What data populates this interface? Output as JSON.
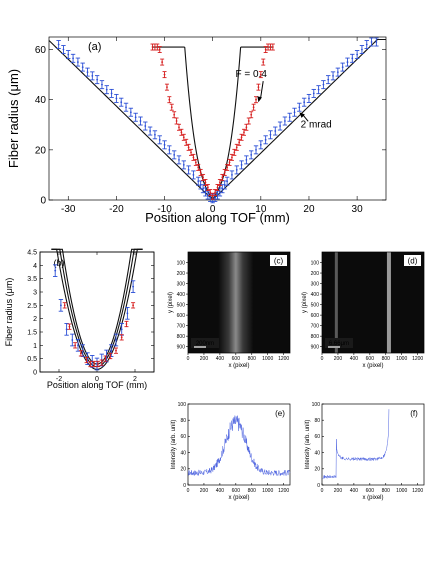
{
  "chart_data": [
    {
      "id": "a",
      "type": "scatter",
      "panel_label": "(a)",
      "xlabel": "Position along TOF (mm)",
      "ylabel": "Fiber radius (μm)",
      "xlim": [
        -34,
        36
      ],
      "ylim": [
        0,
        65
      ],
      "xticks": [
        -30,
        -20,
        -10,
        0,
        10,
        20,
        30
      ],
      "yticks": [
        0,
        20,
        40,
        60
      ],
      "annotations": [
        {
          "text": "F = 0.4",
          "anchor": [
            9.5,
            39
          ],
          "label_at": [
            8,
            49
          ]
        },
        {
          "text": "2 mrad",
          "anchor": [
            18,
            35
          ],
          "label_at": [
            21.5,
            29
          ]
        }
      ],
      "series": [
        {
          "color": "#2b4fd6",
          "err": 1.6,
          "x": [
            -32,
            -31,
            -30,
            -29,
            -28,
            -27,
            -26,
            -25,
            -24,
            -23,
            -22,
            -21,
            -20,
            -19,
            -18,
            -17,
            -16,
            -15,
            -14,
            -13,
            -12,
            -11,
            -10,
            -9,
            -8,
            -7,
            -6,
            -5,
            -4,
            -3,
            -2.5,
            -2,
            -1.5,
            -1,
            -0.5,
            0,
            0.5,
            1,
            1.5,
            2,
            2.5,
            3,
            4,
            5,
            6,
            7,
            8,
            9,
            10,
            11,
            12,
            13,
            14,
            15,
            16,
            17,
            18,
            19,
            20,
            21,
            22,
            23,
            24,
            25,
            26,
            27,
            28,
            29,
            30,
            31,
            32,
            33,
            34
          ],
          "y": [
            62,
            60,
            58,
            56.5,
            55,
            53,
            51,
            49.5,
            48,
            46,
            44,
            42.5,
            40.5,
            39,
            37,
            35,
            33,
            31.5,
            29.5,
            27.5,
            26,
            24,
            22,
            20,
            18,
            16,
            14,
            12,
            10,
            7.5,
            6,
            4.5,
            3.2,
            2,
            1,
            0.5,
            1,
            2,
            3.2,
            4.5,
            6,
            7.5,
            10,
            12,
            14,
            16,
            18,
            20,
            22,
            24,
            26,
            27.5,
            29.5,
            31.5,
            33,
            35,
            37,
            39,
            40.5,
            42.5,
            44,
            46,
            48,
            49.5,
            51,
            53,
            55,
            56.5,
            58,
            60,
            62,
            63,
            63
          ]
        },
        {
          "color": "#d61f1f",
          "err": 1.2,
          "x": [
            -12.5,
            -12,
            -11.5,
            -11,
            -10.5,
            -10,
            -9.5,
            -9,
            -8.5,
            -8,
            -7.5,
            -7,
            -6.5,
            -6,
            -5.5,
            -5,
            -4.5,
            -4,
            -3.5,
            -3,
            -2.5,
            -2,
            -1.5,
            -1,
            -0.5,
            0,
            0.5,
            1,
            1.5,
            2,
            2.5,
            3,
            3.5,
            4,
            4.5,
            5,
            5.5,
            6,
            6.5,
            7,
            7.5,
            8,
            8.5,
            9,
            9.5,
            10,
            10.5,
            11,
            11.5,
            12,
            12.5
          ],
          "y": [
            61,
            61,
            61,
            60,
            55,
            50,
            45,
            40,
            37,
            34,
            31.5,
            29,
            27,
            25,
            23,
            21,
            19,
            17,
            15,
            13,
            11,
            9,
            7,
            5,
            3,
            1.5,
            3,
            5,
            7,
            9,
            11,
            13,
            15,
            17,
            19,
            21,
            23,
            25,
            27,
            29,
            31.5,
            34,
            37,
            40,
            45,
            50,
            55,
            60,
            61,
            61,
            61
          ]
        }
      ]
    },
    {
      "id": "b",
      "type": "scatter",
      "panel_label": "(b)",
      "xlabel": "Position along TOF (mm)",
      "ylabel": "Fiber radius (μm)",
      "xlim": [
        -3,
        3
      ],
      "ylim": [
        0,
        4.5
      ],
      "xticks": [
        -2,
        0,
        2
      ],
      "yticks": [
        0,
        0.5,
        1,
        1.5,
        2,
        2.5,
        3,
        3.5,
        4,
        4.5
      ],
      "ytick_labels": [
        "0",
        "0.5",
        "1",
        "1.5",
        "2",
        "2.5",
        "3",
        "3.5",
        "4",
        "4.5"
      ],
      "series": [
        {
          "color": "#2b4fd6",
          "err": 0.22,
          "x": [
            -2.2,
            -1.9,
            -1.6,
            -1.3,
            -1.0,
            -0.75,
            -0.5,
            -0.25,
            0,
            0.25,
            0.5,
            0.75,
            1.0,
            1.3,
            1.6,
            1.9
          ],
          "y": [
            3.8,
            2.5,
            1.6,
            1.2,
            1.0,
            0.8,
            0.5,
            0.4,
            0.3,
            0.45,
            0.6,
            0.8,
            1.2,
            1.6,
            2.2,
            3.2
          ]
        },
        {
          "color": "#d61f1f",
          "err": 0.1,
          "x": [
            -1.7,
            -1.45,
            -1.15,
            -0.85,
            -0.55,
            -0.35,
            -0.15,
            0.05,
            0.25,
            0.45,
            0.7,
            1.0,
            1.3,
            1.55,
            1.9
          ],
          "y": [
            2.5,
            1.7,
            1.0,
            0.7,
            0.45,
            0.3,
            0.3,
            0.3,
            0.35,
            0.5,
            0.6,
            0.8,
            1.3,
            1.8,
            2.5
          ]
        }
      ]
    },
    {
      "id": "c",
      "type": "image",
      "panel_label": "(c)",
      "xlabel": "x (pixel)",
      "ylabel": "y (pixel)",
      "xticks": [
        0,
        200,
        400,
        600,
        800,
        1000,
        1200
      ],
      "yticks": [
        100,
        200,
        300,
        400,
        500,
        600,
        700,
        800,
        900
      ],
      "scale_bar": "200nm",
      "band_center": 600,
      "band_width": 220
    },
    {
      "id": "d",
      "type": "image",
      "panel_label": "(d)",
      "xlabel": "x (pixel)",
      "ylabel": "y (pixel)",
      "xticks": [
        0,
        200,
        400,
        600,
        800,
        1000,
        1200
      ],
      "yticks": [
        100,
        200,
        300,
        400,
        500,
        600,
        700,
        800,
        900
      ],
      "scale_bar": "6.66μm",
      "line_positions": [
        180,
        840
      ]
    },
    {
      "id": "e",
      "type": "line",
      "panel_label": "(e)",
      "xlabel": "x (pixel)",
      "ylabel": "Intensity (arb. unit)",
      "xlim": [
        0,
        1280
      ],
      "ylim": [
        0,
        100
      ],
      "xticks": [
        0,
        200,
        400,
        600,
        800,
        1000,
        1200
      ],
      "yticks": [
        0,
        20,
        40,
        60,
        80,
        100
      ],
      "profile": {
        "type": "peak",
        "baseline": 15,
        "peak": 78,
        "center": 600,
        "width": 180,
        "noise": 12
      }
    },
    {
      "id": "f",
      "type": "line",
      "panel_label": "(f)",
      "xlabel": "x (pixel)",
      "ylabel": "Intensity (arb. unit)",
      "xlim": [
        0,
        1280
      ],
      "ylim": [
        0,
        100
      ],
      "xticks": [
        0,
        200,
        400,
        600,
        800,
        1000,
        1200
      ],
      "yticks": [
        0,
        20,
        40,
        60,
        80,
        100
      ],
      "profile": {
        "type": "edges",
        "baseline": 10,
        "left_edge": 180,
        "right_edge": 840,
        "left_level": 55,
        "right_level": 95,
        "floor": 32,
        "noise": 4
      }
    }
  ]
}
